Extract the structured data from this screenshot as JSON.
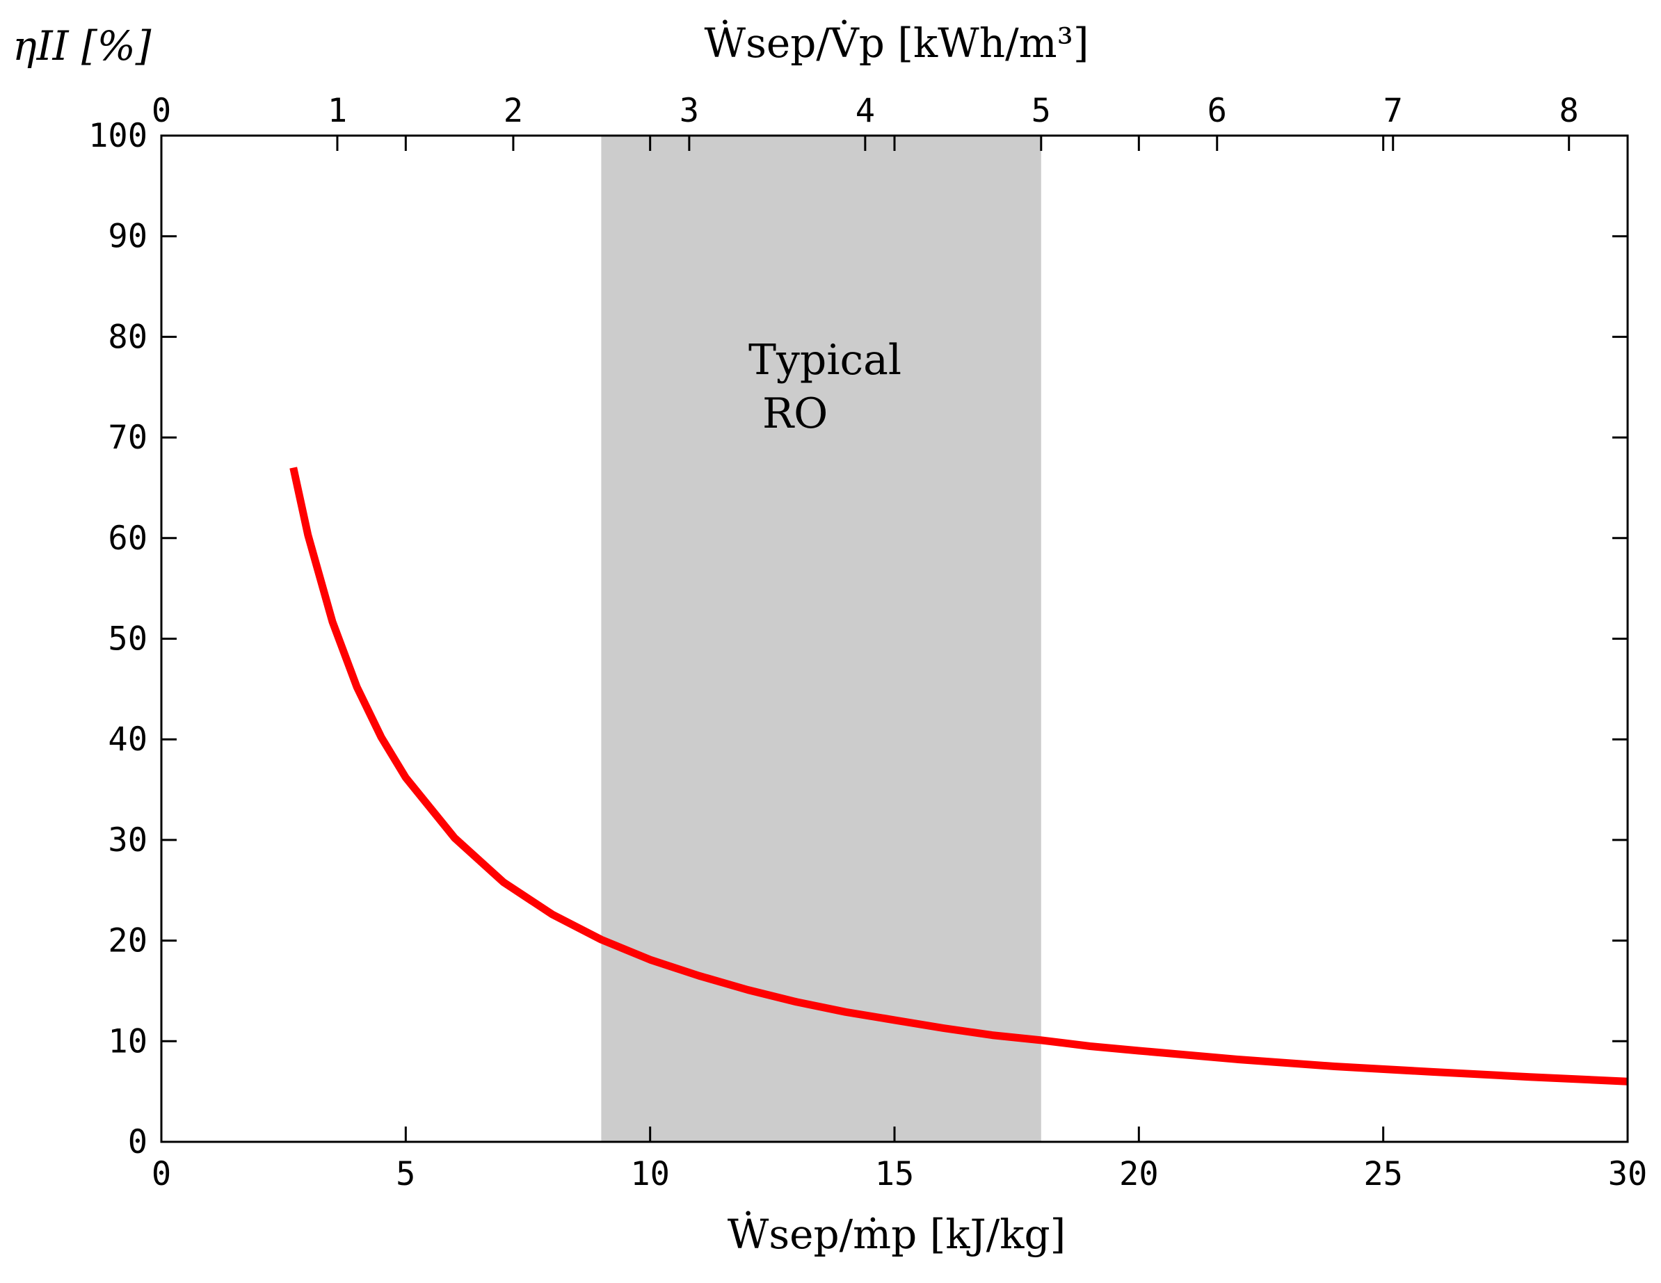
{
  "chart_data": {
    "type": "line",
    "title": "",
    "ylabel": "ηII [%]",
    "xlabel": "Ẇsep/ṁp [kJ/kg]",
    "x2label": "Ẇsep/V̇p [kWh/m³]",
    "xlim": [
      0,
      30
    ],
    "ylim": [
      0,
      100
    ],
    "x2lim": [
      0,
      8.3333
    ],
    "xticks": [
      0,
      5,
      10,
      15,
      20,
      25,
      30
    ],
    "yticks": [
      0,
      10,
      20,
      30,
      40,
      50,
      60,
      70,
      80,
      90,
      100
    ],
    "x2ticks": [
      0,
      1,
      2,
      3,
      4,
      5,
      6,
      7,
      8
    ],
    "grid": false,
    "shaded_region": {
      "x_range": [
        9,
        18
      ],
      "label_lines": [
        "Typical",
        "RO"
      ],
      "color": "#cccccc"
    },
    "series": [
      {
        "color": "#ff0000",
        "points": [
          [
            2.7,
            67.0
          ],
          [
            3.0,
            60.3
          ],
          [
            3.5,
            51.7
          ],
          [
            4.0,
            45.2
          ],
          [
            4.5,
            40.2
          ],
          [
            5.0,
            36.2
          ],
          [
            6.0,
            30.2
          ],
          [
            7.0,
            25.8
          ],
          [
            8.0,
            22.6
          ],
          [
            9.0,
            20.1
          ],
          [
            10.0,
            18.1
          ],
          [
            11.0,
            16.5
          ],
          [
            12.0,
            15.1
          ],
          [
            13.0,
            13.9
          ],
          [
            14.0,
            12.9
          ],
          [
            15.0,
            12.1
          ],
          [
            16.0,
            11.3
          ],
          [
            17.0,
            10.6
          ],
          [
            18.0,
            10.1
          ],
          [
            19.0,
            9.5
          ],
          [
            20.0,
            9.05
          ],
          [
            22.0,
            8.2
          ],
          [
            24.0,
            7.5
          ],
          [
            26.0,
            6.95
          ],
          [
            28.0,
            6.45
          ],
          [
            30.0,
            6.0
          ]
        ]
      }
    ]
  }
}
